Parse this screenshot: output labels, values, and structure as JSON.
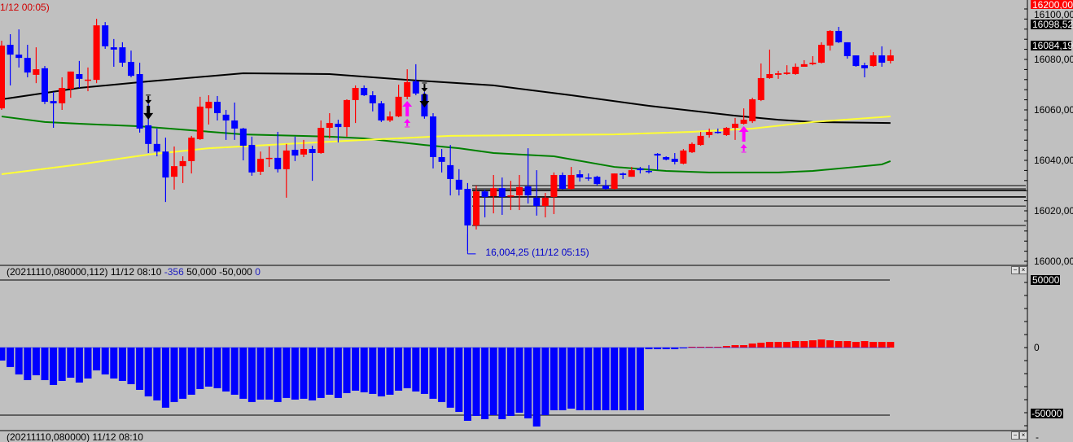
{
  "colors": {
    "up": "#ff0000",
    "down": "#0000ff",
    "ma_long": "#000000",
    "ma_mid": "#008000",
    "ma_short": "#ffff33",
    "signal_buy": "#ff00ff",
    "signal_sell": "#000000",
    "background": "#c0c0c0"
  },
  "price_pane": {
    "header_text": "1/12 00:05)",
    "axis_labels": [
      "16100,00",
      "16080,00",
      "16060,00",
      "16040,00",
      "16020,00",
      "16000,00"
    ],
    "axis_values": [
      16100,
      16080,
      16060,
      16040,
      16020,
      16000
    ],
    "top_hidden_label": "16200,00",
    "marker_high": {
      "label": "16098,52",
      "value": 16098.52
    },
    "marker_last": {
      "label": "16084,19",
      "value": 16084.19
    },
    "low_annotation": {
      "label": "16,004,25 (11/12 05:15)",
      "value": 16004.25,
      "bar": 54
    },
    "candles": [
      [
        16060.6,
        16087.4,
        16060.0,
        16085.5
      ],
      [
        16085.8,
        16090.0,
        16069.7,
        16081.9
      ],
      [
        16081.9,
        16091.9,
        16076.8,
        16080.6
      ],
      [
        16080.6,
        16085.8,
        16072.9,
        16074.8
      ],
      [
        16073.9,
        16084.8,
        16070.6,
        16076.1
      ],
      [
        16076.5,
        16077.4,
        16062.3,
        16063.2
      ],
      [
        16063.5,
        16067.1,
        16052.9,
        16062.6
      ],
      [
        16062.6,
        16072.9,
        16060.0,
        16068.7
      ],
      [
        16068.4,
        16075.2,
        16064.8,
        16075.2
      ],
      [
        16074.2,
        16079.4,
        16068.7,
        16072.3
      ],
      [
        16071.9,
        16076.8,
        16067.4,
        16072.0
      ],
      [
        16071.9,
        16096.1,
        16070.6,
        16093.5
      ],
      [
        16093.5,
        16094.8,
        16084.2,
        16085.2
      ],
      [
        16084.8,
        16088.1,
        16077.1,
        16083.9
      ],
      [
        16084.8,
        16086.8,
        16077.1,
        16078.7
      ],
      [
        16079.0,
        16083.5,
        16072.9,
        16073.5
      ],
      [
        16074.2,
        16078.7,
        16051.0,
        16052.6
      ],
      [
        16053.9,
        16062.3,
        16042.9,
        16046.5
      ],
      [
        16046.5,
        16052.6,
        16041.6,
        16043.5
      ],
      [
        16043.5,
        16049.0,
        16023.5,
        16033.2
      ],
      [
        16033.5,
        16045.5,
        16028.4,
        16037.7
      ],
      [
        16037.7,
        16041.6,
        16031.0,
        16039.7
      ],
      [
        16039.7,
        16049.7,
        16034.8,
        16049.0
      ],
      [
        16048.4,
        16065.2,
        16048.1,
        16061.3
      ],
      [
        16060.6,
        16065.8,
        16054.2,
        16063.2
      ],
      [
        16063.2,
        16065.5,
        16055.8,
        16058.7
      ],
      [
        16058.1,
        16060.0,
        16048.1,
        16055.8
      ],
      [
        16055.8,
        16062.9,
        16048.1,
        16052.6
      ],
      [
        16052.6,
        16052.9,
        16040.0,
        16045.8
      ],
      [
        16046.1,
        16049.4,
        16033.9,
        16035.2
      ],
      [
        16035.5,
        16043.5,
        16034.2,
        16040.6
      ],
      [
        16040.75,
        16045.5,
        16037.4,
        16041.0
      ],
      [
        16041.0,
        16051.3,
        16035.2,
        16036.5
      ],
      [
        16036.5,
        16046.5,
        16025.2,
        16043.9
      ],
      [
        16044.2,
        16049.4,
        16039.7,
        16041.9
      ],
      [
        16042.3,
        16048.1,
        16041.3,
        16044.5
      ],
      [
        16044.5,
        16045.8,
        16031.9,
        16042.9
      ],
      [
        16042.9,
        16055.8,
        16042.6,
        16052.9
      ],
      [
        16052.9,
        16058.7,
        16048.7,
        16054.8
      ],
      [
        16054.5,
        16056.1,
        16047.1,
        16053.2
      ],
      [
        16053.2,
        16064.2,
        16049.4,
        16063.9
      ],
      [
        16063.9,
        16069.7,
        16054.8,
        16068.7
      ],
      [
        16068.7,
        16069.7,
        16065.5,
        16065.8
      ],
      [
        16065.8,
        16067.4,
        16059.4,
        16062.6
      ],
      [
        16062.6,
        16063.5,
        16055.2,
        16055.8
      ],
      [
        16055.8,
        16059.4,
        16055.2,
        16057.4
      ],
      [
        16057.4,
        16070.0,
        16057.1,
        16065.2
      ],
      [
        16065.2,
        16076.1,
        16064.2,
        16071.0
      ],
      [
        16071.3,
        16078.1,
        16065.8,
        16066.5
      ],
      [
        16066.1,
        16067.1,
        16056.5,
        16057.4
      ],
      [
        16057.4,
        16058.7,
        16036.8,
        16041.3
      ],
      [
        16041.3,
        16044.5,
        16035.2,
        16039.4
      ],
      [
        16038.1,
        16046.1,
        16026.1,
        16032.6
      ],
      [
        16032.3,
        16036.5,
        16026.1,
        16028.4
      ],
      [
        16028.7,
        16031.0,
        16004.25,
        16014.2
      ],
      [
        16014.2,
        16030.0,
        16012.6,
        16027.7
      ],
      [
        16027.7,
        16028.4,
        16017.4,
        16025.5
      ],
      [
        16025.8,
        16034.2,
        16019.0,
        16029.0
      ],
      [
        16029.0,
        16033.2,
        16018.4,
        16025.5
      ],
      [
        16025.8,
        16031.9,
        16020.3,
        16026.1
      ],
      [
        16026.1,
        16034.2,
        16020.3,
        16029.4
      ],
      [
        16029.7,
        16044.8,
        16022.9,
        16026.1
      ],
      [
        16025.2,
        16036.1,
        16018.1,
        16021.9
      ],
      [
        16021.9,
        16027.1,
        16017.4,
        16025.2
      ],
      [
        16025.5,
        16035.2,
        16018.7,
        16034.2
      ],
      [
        16034.2,
        16035.2,
        16028.4,
        16028.7
      ],
      [
        16028.7,
        16037.4,
        16028.4,
        16034.2
      ],
      [
        16034.5,
        16036.1,
        16031.6,
        16033.2
      ],
      [
        16033.2,
        16034.8,
        16031.9,
        16032.9
      ],
      [
        16033.5,
        16033.9,
        16030.0,
        16030.6
      ],
      [
        16030.0,
        16032.3,
        16028.4,
        16028.7
      ],
      [
        16028.7,
        16034.8,
        16028.4,
        16034.8
      ],
      [
        16034.8,
        16035.2,
        16032.6,
        16034.2
      ],
      [
        16033.5,
        16037.4,
        16033.5,
        16036.1
      ],
      [
        16036.8,
        16037.4,
        16034.8,
        16036.1
      ],
      [
        16035.8,
        16038.1,
        16034.8,
        16035.5
      ],
      [
        16042.6,
        16042.9,
        16036.1,
        16041.9
      ],
      [
        16041.3,
        16041.6,
        16040.0,
        16040.3
      ],
      [
        16040.6,
        16042.9,
        16038.4,
        16039.4
      ],
      [
        16038.7,
        16044.5,
        16038.4,
        16043.9
      ],
      [
        16043.2,
        16047.1,
        16042.9,
        16046.5
      ],
      [
        16046.1,
        16051.3,
        16045.8,
        16049.7
      ],
      [
        16050.0,
        16052.6,
        16049.0,
        16051.3
      ],
      [
        16051.3,
        16052.6,
        16050.6,
        16051.0
      ],
      [
        16050.0,
        16053.2,
        16049.7,
        16052.9
      ],
      [
        16052.9,
        16056.8,
        16048.1,
        16054.5
      ],
      [
        16054.5,
        16060.6,
        16054.2,
        16056.1
      ],
      [
        16055.5,
        16064.8,
        16054.8,
        16064.2
      ],
      [
        16063.9,
        16078.4,
        16063.5,
        16072.6
      ],
      [
        16072.6,
        16083.9,
        16072.3,
        16074.2
      ],
      [
        16073.9,
        16075.5,
        16072.3,
        16074.5
      ],
      [
        16074.2,
        16077.7,
        16073.9,
        16074.8
      ],
      [
        16074.2,
        16078.4,
        16073.9,
        16077.1
      ],
      [
        16077.1,
        16079.7,
        16077.1,
        16078.1
      ],
      [
        16078.1,
        16081.3,
        16077.7,
        16078.7
      ],
      [
        16078.7,
        16086.8,
        16078.4,
        16085.8
      ],
      [
        16085.5,
        16091.6,
        16083.5,
        16091.3
      ],
      [
        16091.3,
        16092.9,
        16086.5,
        16086.8
      ],
      [
        16086.8,
        16086.8,
        16080.3,
        16081.3
      ],
      [
        16081.6,
        16081.6,
        16077.1,
        16077.4
      ],
      [
        16077.7,
        16078.7,
        16072.9,
        16076.5
      ],
      [
        16077.4,
        16082.9,
        16077.1,
        16081.6
      ],
      [
        16081.6,
        16085.2,
        16077.1,
        16078.7
      ],
      [
        16079.4,
        16083.9,
        16078.4,
        16081.6
      ]
    ],
    "moving_averages": [
      {
        "color": "#000000",
        "points": [
          [
            0,
            16064.2
          ],
          [
            9,
            16068.7
          ],
          [
            17,
            16071.3
          ],
          [
            28,
            16074.5
          ],
          [
            38,
            16074.2
          ],
          [
            47,
            16071.9
          ],
          [
            57,
            16069.7
          ],
          [
            66,
            16065.8
          ],
          [
            75,
            16061.6
          ],
          [
            85,
            16057.7
          ],
          [
            90,
            16056.1
          ],
          [
            94,
            16055.2
          ],
          [
            103,
            16054.8
          ]
        ]
      },
      {
        "color": "#008000",
        "points": [
          [
            0,
            16057.4
          ],
          [
            5,
            16055.2
          ],
          [
            9,
            16054.5
          ],
          [
            16,
            16053.5
          ],
          [
            28,
            16050.3
          ],
          [
            38,
            16049.4
          ],
          [
            42,
            16048.7
          ],
          [
            49,
            16046.1
          ],
          [
            53,
            16044.8
          ],
          [
            57,
            16042.9
          ],
          [
            64,
            16041.6
          ],
          [
            71,
            16037.4
          ],
          [
            77,
            16035.8
          ],
          [
            82,
            16035.2
          ],
          [
            90,
            16035.2
          ],
          [
            94,
            16035.8
          ],
          [
            99,
            16037.4
          ],
          [
            102,
            16038.4
          ],
          [
            103,
            16039.7
          ]
        ]
      },
      {
        "color": "#ffff33",
        "points": [
          [
            0,
            16034.5
          ],
          [
            9,
            16038.4
          ],
          [
            17,
            16042.3
          ],
          [
            24,
            16044.8
          ],
          [
            33,
            16046.5
          ],
          [
            42,
            16048.1
          ],
          [
            52,
            16049.7
          ],
          [
            61,
            16050.0
          ],
          [
            71,
            16050.3
          ],
          [
            80,
            16051.3
          ],
          [
            87,
            16052.6
          ],
          [
            94,
            16055.2
          ],
          [
            103,
            16057.4
          ]
        ]
      }
    ],
    "horizontal_levels": [
      16030.0,
      16028.7,
      16028.1,
      16025.5,
      16021.9,
      16014.2
    ],
    "signals": [
      {
        "bar": 17,
        "type": "sell"
      },
      {
        "bar": 49,
        "type": "sell"
      },
      {
        "bar": 47,
        "type": "buy"
      },
      {
        "bar": 86,
        "type": "buy"
      }
    ]
  },
  "indicator_pane": {
    "header": {
      "params": "(20211110,080000,112) 11/12 08:10",
      "value": "-356",
      "upper": "50,000",
      "lower": "-50,000",
      "signal": "0"
    },
    "axis": {
      "upper_label": "50000",
      "zero_label": "0",
      "lower_label": "-50000"
    },
    "levels": [
      50000,
      -50000
    ],
    "histogram": [
      -9600,
      -14400,
      -19900,
      -24100,
      -20500,
      -24100,
      -27700,
      -24700,
      -22300,
      -25900,
      -22900,
      -16900,
      -19900,
      -22900,
      -24700,
      -27100,
      -31300,
      -36100,
      -39100,
      -44500,
      -40300,
      -37900,
      -34900,
      -30700,
      -28900,
      -30100,
      -32500,
      -34900,
      -37900,
      -40300,
      -38500,
      -38500,
      -40300,
      -37300,
      -38500,
      -37900,
      -39100,
      -37300,
      -34900,
      -37300,
      -33700,
      -31900,
      -33100,
      -34300,
      -36100,
      -34900,
      -31900,
      -30100,
      -32500,
      -34300,
      -37900,
      -40300,
      -44500,
      -47600,
      -54200,
      -50600,
      -53000,
      -50000,
      -53000,
      -50600,
      -48200,
      -52400,
      -58400,
      -50000,
      -46400,
      -46400,
      -45200,
      -46400,
      -46400,
      -46400,
      -46400,
      -46400,
      -46400,
      -46400,
      -46400,
      -1200,
      -1200,
      -1200,
      -1200,
      -600,
      600,
      600,
      600,
      600,
      1200,
      1800,
      1800,
      3000,
      3600,
      4200,
      4200,
      4200,
      4800,
      4800,
      5400,
      6000,
      5400,
      4800,
      4800,
      4200,
      4800,
      4200,
      4200,
      4200
    ]
  },
  "bottom_pane": {
    "header": "(20211110,080000) 11/12 08:10",
    "axis_label": "-"
  },
  "pane_buttons": {
    "minimize": "−",
    "close": "×"
  }
}
